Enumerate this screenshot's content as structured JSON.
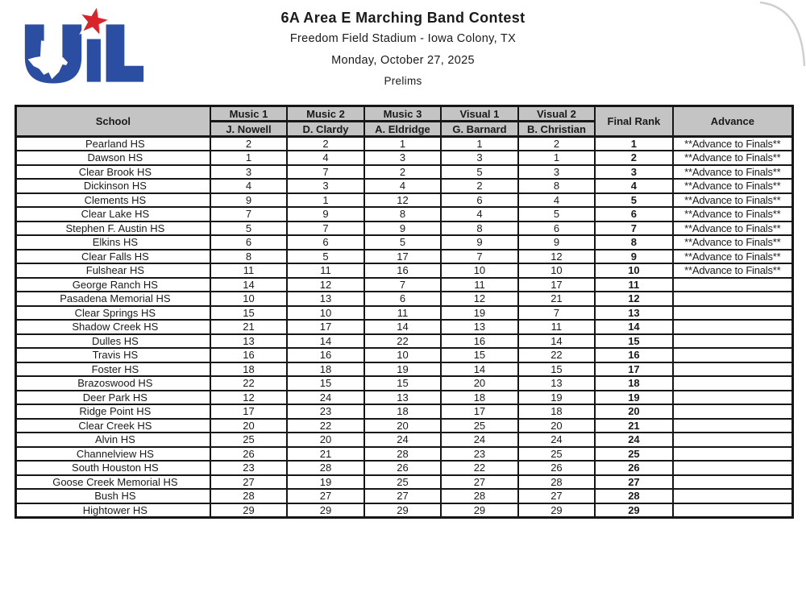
{
  "page": {
    "title": "6A Area E Marching Band Contest",
    "venue": "Freedom Field Stadium - Iowa Colony, TX",
    "date": "Monday, October 27, 2025",
    "round": "Prelims"
  },
  "logo": {
    "name": "uil-logo",
    "letters": "UIL",
    "blue": "#2b4da2",
    "red": "#d8252c"
  },
  "colors": {
    "header_bg": "#c4c4c4",
    "border": "#161616"
  },
  "table": {
    "header": {
      "school": "School",
      "captions": [
        {
          "label": "Music 1",
          "judge": "J. Nowell"
        },
        {
          "label": "Music 2",
          "judge": "D. Clardy"
        },
        {
          "label": "Music 3",
          "judge": "A. Eldridge"
        },
        {
          "label": "Visual 1",
          "judge": "G. Barnard"
        },
        {
          "label": "Visual 2",
          "judge": "B. Christian"
        }
      ],
      "final_rank": "Final Rank",
      "advance": "Advance"
    },
    "advance_text": "**Advance to Finals**",
    "rows": [
      {
        "school": "Pearland HS",
        "scores": [
          2,
          2,
          1,
          1,
          2
        ],
        "final_rank": 1,
        "advance": true
      },
      {
        "school": "Dawson HS",
        "scores": [
          1,
          4,
          3,
          3,
          1
        ],
        "final_rank": 2,
        "advance": true
      },
      {
        "school": "Clear Brook HS",
        "scores": [
          3,
          7,
          2,
          5,
          3
        ],
        "final_rank": 3,
        "advance": true
      },
      {
        "school": "Dickinson HS",
        "scores": [
          4,
          3,
          4,
          2,
          8
        ],
        "final_rank": 4,
        "advance": true
      },
      {
        "school": "Clements HS",
        "scores": [
          9,
          1,
          12,
          6,
          4
        ],
        "final_rank": 5,
        "advance": true
      },
      {
        "school": "Clear Lake HS",
        "scores": [
          7,
          9,
          8,
          4,
          5
        ],
        "final_rank": 6,
        "advance": true
      },
      {
        "school": "Stephen F. Austin HS",
        "scores": [
          5,
          7,
          9,
          8,
          6
        ],
        "final_rank": 7,
        "advance": true
      },
      {
        "school": "Elkins HS",
        "scores": [
          6,
          6,
          5,
          9,
          9
        ],
        "final_rank": 8,
        "advance": true
      },
      {
        "school": "Clear Falls HS",
        "scores": [
          8,
          5,
          17,
          7,
          12
        ],
        "final_rank": 9,
        "advance": true
      },
      {
        "school": "Fulshear HS",
        "scores": [
          11,
          11,
          16,
          10,
          10
        ],
        "final_rank": 10,
        "advance": true
      },
      {
        "school": "George Ranch HS",
        "scores": [
          14,
          12,
          7,
          11,
          17
        ],
        "final_rank": 11,
        "advance": false
      },
      {
        "school": "Pasadena Memorial HS",
        "scores": [
          10,
          13,
          6,
          12,
          21
        ],
        "final_rank": 12,
        "advance": false
      },
      {
        "school": "Clear Springs HS",
        "scores": [
          15,
          10,
          11,
          19,
          7
        ],
        "final_rank": 13,
        "advance": false
      },
      {
        "school": "Shadow Creek HS",
        "scores": [
          21,
          17,
          14,
          13,
          11
        ],
        "final_rank": 14,
        "advance": false
      },
      {
        "school": "Dulles HS",
        "scores": [
          13,
          14,
          22,
          16,
          14
        ],
        "final_rank": 15,
        "advance": false
      },
      {
        "school": "Travis HS",
        "scores": [
          16,
          16,
          10,
          15,
          22
        ],
        "final_rank": 16,
        "advance": false
      },
      {
        "school": "Foster HS",
        "scores": [
          18,
          18,
          19,
          14,
          15
        ],
        "final_rank": 17,
        "advance": false
      },
      {
        "school": "Brazoswood HS",
        "scores": [
          22,
          15,
          15,
          20,
          13
        ],
        "final_rank": 18,
        "advance": false
      },
      {
        "school": "Deer Park HS",
        "scores": [
          12,
          24,
          13,
          18,
          19
        ],
        "final_rank": 19,
        "advance": false
      },
      {
        "school": "Ridge Point HS",
        "scores": [
          17,
          23,
          18,
          17,
          18
        ],
        "final_rank": 20,
        "advance": false
      },
      {
        "school": "Clear Creek HS",
        "scores": [
          20,
          22,
          20,
          25,
          20
        ],
        "final_rank": 21,
        "advance": false
      },
      {
        "school": "Alvin HS",
        "scores": [
          25,
          20,
          24,
          24,
          24
        ],
        "final_rank": 24,
        "advance": false
      },
      {
        "school": "Channelview HS",
        "scores": [
          26,
          21,
          28,
          23,
          25
        ],
        "final_rank": 25,
        "advance": false
      },
      {
        "school": "South Houston HS",
        "scores": [
          23,
          28,
          26,
          22,
          26
        ],
        "final_rank": 26,
        "advance": false
      },
      {
        "school": "Goose Creek Memorial HS",
        "scores": [
          27,
          19,
          25,
          27,
          28
        ],
        "final_rank": 27,
        "advance": false
      },
      {
        "school": "Bush HS",
        "scores": [
          28,
          27,
          27,
          28,
          27
        ],
        "final_rank": 28,
        "advance": false
      },
      {
        "school": "Hightower HS",
        "scores": [
          29,
          29,
          29,
          29,
          29
        ],
        "final_rank": 29,
        "advance": false
      }
    ]
  }
}
